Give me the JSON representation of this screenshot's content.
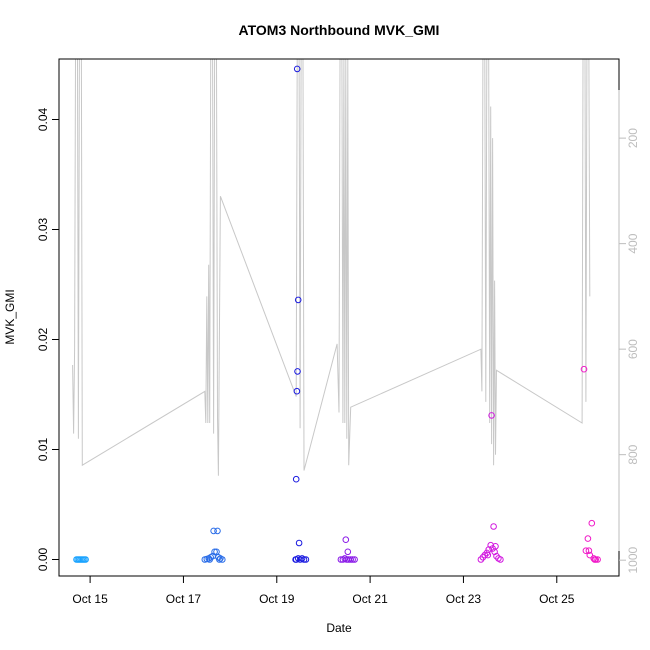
{
  "chart_data": {
    "type": "scatter",
    "title": "ATOM3 Northbound MVK_GMI",
    "xlabel": "Date",
    "ylabel": "MVK_GMI",
    "x_ticks": [
      "Oct 15",
      "Oct 17",
      "Oct 19",
      "Oct 21",
      "Oct 23",
      "Oct 25"
    ],
    "y_ticks": [
      "0.00",
      "0.01",
      "0.02",
      "0.03",
      "0.04"
    ],
    "y2_ticks": [
      "200",
      "400",
      "600",
      "800",
      "1000"
    ],
    "xlim": [
      "2016-10-14T08:00",
      "2016-10-26T08:00"
    ],
    "ylim": [
      -0.0015,
      0.0455
    ],
    "y2lim": [
      1030,
      50
    ],
    "y2_reversed": true,
    "colors": {
      "altitude_line": "#c8c8c8",
      "axis": "#000000",
      "right_axis": "#bdbdbd"
    },
    "series": [
      {
        "color": "#1aa3ff",
        "points": [
          [
            "2016-10-14T17:00",
            0.0
          ],
          [
            "2016-10-14T17:40",
            0.0
          ],
          [
            "2016-10-14T18:20",
            0.0
          ],
          [
            "2016-10-14T19:00",
            0.0
          ],
          [
            "2016-10-14T19:40",
            0.0
          ],
          [
            "2016-10-14T20:20",
            0.0
          ],
          [
            "2016-10-14T21:00",
            0.0
          ],
          [
            "2016-10-14T21:40",
            0.0
          ]
        ]
      },
      {
        "color": "#2a6de8",
        "points": [
          [
            "2016-10-17T11:00",
            0.0
          ],
          [
            "2016-10-17T12:00",
            5e-05
          ],
          [
            "2016-10-17T13:00",
            0.0001
          ],
          [
            "2016-10-17T14:00",
            0.0002
          ],
          [
            "2016-10-17T15:00",
            0.0003
          ],
          [
            "2016-10-17T16:00",
            0.0007
          ],
          [
            "2016-10-17T17:00",
            0.0007
          ],
          [
            "2016-10-17T18:00",
            0.0002
          ],
          [
            "2016-10-17T19:00",
            0.0001
          ],
          [
            "2016-10-17T20:00",
            0.0
          ],
          [
            "2016-10-17T15:30",
            0.0026
          ],
          [
            "2016-10-17T17:30",
            0.0026
          ],
          [
            "2016-10-17T13:30",
            0.0
          ],
          [
            "2016-10-17T18:30",
            0.0
          ]
        ]
      },
      {
        "color": "#1a1ae0",
        "points": [
          [
            "2016-10-19T10:00",
            0.0
          ],
          [
            "2016-10-19T11:00",
            0.0001
          ],
          [
            "2016-10-19T12:00",
            0.0
          ],
          [
            "2016-10-19T13:00",
            0.0001
          ],
          [
            "2016-10-19T14:00",
            0.0
          ],
          [
            "2016-10-19T10:30",
            0.0446
          ],
          [
            "2016-10-19T11:00",
            0.0236
          ],
          [
            "2016-10-19T10:40",
            0.0171
          ],
          [
            "2016-10-19T10:20",
            0.0153
          ],
          [
            "2016-10-19T10:00",
            0.0073
          ],
          [
            "2016-10-19T11:30",
            0.0015
          ],
          [
            "2016-10-19T09:40",
            0.0
          ],
          [
            "2016-10-19T15:00",
            0.0
          ]
        ]
      },
      {
        "color": "#8a1ae8",
        "points": [
          [
            "2016-10-20T09:00",
            0.0
          ],
          [
            "2016-10-20T10:00",
            0.0
          ],
          [
            "2016-10-20T11:00",
            0.0001
          ],
          [
            "2016-10-20T12:00",
            0.0
          ],
          [
            "2016-10-20T13:00",
            0.0
          ],
          [
            "2016-10-20T14:00",
            0.0
          ],
          [
            "2016-10-20T15:00",
            0.0
          ],
          [
            "2016-10-20T16:00",
            0.0
          ],
          [
            "2016-10-20T11:30",
            0.0018
          ],
          [
            "2016-10-20T12:30",
            0.0007
          ]
        ]
      },
      {
        "color": "#d21ae0",
        "points": [
          [
            "2016-10-23T09:00",
            0.0
          ],
          [
            "2016-10-23T10:00",
            0.0002
          ],
          [
            "2016-10-23T11:00",
            0.0004
          ],
          [
            "2016-10-23T12:00",
            0.0006
          ],
          [
            "2016-10-23T13:00",
            0.0009
          ],
          [
            "2016-10-23T14:00",
            0.0013
          ],
          [
            "2016-10-23T15:00",
            0.001
          ],
          [
            "2016-10-23T16:00",
            0.0007
          ],
          [
            "2016-10-23T17:00",
            0.0003
          ],
          [
            "2016-10-23T18:00",
            0.0001
          ],
          [
            "2016-10-23T14:30",
            0.0131
          ],
          [
            "2016-10-23T15:30",
            0.003
          ],
          [
            "2016-10-23T12:30",
            0.0004
          ],
          [
            "2016-10-23T16:30",
            0.0012
          ],
          [
            "2016-10-23T19:00",
            0.0
          ]
        ]
      },
      {
        "color": "#f01ac8",
        "points": [
          [
            "2016-10-25T14:00",
            0.0173
          ],
          [
            "2016-10-25T15:00",
            0.0008
          ],
          [
            "2016-10-25T16:00",
            0.0019
          ],
          [
            "2016-10-25T17:00",
            0.0004
          ],
          [
            "2016-10-25T18:00",
            0.0033
          ],
          [
            "2016-10-25T19:00",
            0.0001
          ],
          [
            "2016-10-25T20:00",
            0.0
          ],
          [
            "2016-10-25T21:00",
            0.0
          ],
          [
            "2016-10-25T16:30",
            0.0008
          ],
          [
            "2016-10-25T19:30",
            0.0
          ]
        ]
      }
    ],
    "secondary_line": {
      "name": "",
      "color": "#c8c8c8",
      "points": [
        [
          "2016-10-14T15:00",
          630
        ],
        [
          "2016-10-14T15:30",
          760
        ],
        [
          "2016-10-14T16:00",
          600
        ],
        [
          "2016-10-14T16:30",
          50
        ],
        [
          "2016-10-14T17:30",
          50
        ],
        [
          "2016-10-14T18:00",
          770
        ],
        [
          "2016-10-14T18:30",
          50
        ],
        [
          "2016-10-14T19:30",
          50
        ],
        [
          "2016-10-14T20:00",
          820
        ],
        [
          "2016-10-17T11:00",
          680
        ],
        [
          "2016-10-17T11:30",
          740
        ],
        [
          "2016-10-17T12:00",
          500
        ],
        [
          "2016-10-17T12:30",
          740
        ],
        [
          "2016-10-17T13:00",
          440
        ],
        [
          "2016-10-17T13:30",
          740
        ],
        [
          "2016-10-17T14:00",
          50
        ],
        [
          "2016-10-17T15:00",
          50
        ],
        [
          "2016-10-17T15:30",
          760
        ],
        [
          "2016-10-17T16:00",
          50
        ],
        [
          "2016-10-17T17:00",
          50
        ],
        [
          "2016-10-17T17:30",
          730
        ],
        [
          "2016-10-17T18:00",
          840
        ],
        [
          "2016-10-17T19:00",
          310
        ],
        [
          "2016-10-19T10:00",
          690
        ],
        [
          "2016-10-19T10:30",
          50
        ],
        [
          "2016-10-19T11:30",
          50
        ],
        [
          "2016-10-19T12:00",
          750
        ],
        [
          "2016-10-19T12:30",
          50
        ],
        [
          "2016-10-19T13:30",
          50
        ],
        [
          "2016-10-19T14:00",
          830
        ],
        [
          "2016-10-20T07:00",
          590
        ],
        [
          "2016-10-20T08:00",
          720
        ],
        [
          "2016-10-20T08:30",
          50
        ],
        [
          "2016-10-20T09:30",
          50
        ],
        [
          "2016-10-20T10:00",
          740
        ],
        [
          "2016-10-20T10:30",
          50
        ],
        [
          "2016-10-20T11:00",
          740
        ],
        [
          "2016-10-20T11:30",
          50
        ],
        [
          "2016-10-20T12:00",
          770
        ],
        [
          "2016-10-20T12:30",
          50
        ],
        [
          "2016-10-20T13:00",
          820
        ],
        [
          "2016-10-20T14:00",
          710
        ],
        [
          "2016-10-23T09:00",
          600
        ],
        [
          "2016-10-23T09:30",
          680
        ],
        [
          "2016-10-23T10:00",
          50
        ],
        [
          "2016-10-23T11:00",
          50
        ],
        [
          "2016-10-23T11:30",
          700
        ],
        [
          "2016-10-23T12:00",
          50
        ],
        [
          "2016-10-23T13:00",
          50
        ],
        [
          "2016-10-23T13:30",
          740
        ],
        [
          "2016-10-23T14:00",
          140
        ],
        [
          "2016-10-23T14:30",
          780
        ],
        [
          "2016-10-23T15:00",
          200
        ],
        [
          "2016-10-23T15:30",
          820
        ],
        [
          "2016-10-23T16:00",
          470
        ],
        [
          "2016-10-23T16:30",
          800
        ],
        [
          "2016-10-23T17:00",
          640
        ],
        [
          "2016-10-25T13:00",
          740
        ],
        [
          "2016-10-25T13:30",
          50
        ],
        [
          "2016-10-25T14:30",
          50
        ],
        [
          "2016-10-25T15:00",
          700
        ],
        [
          "2016-10-25T15:30",
          50
        ],
        [
          "2016-10-25T16:30",
          50
        ],
        [
          "2016-10-25T17:00",
          500
        ]
      ]
    }
  }
}
